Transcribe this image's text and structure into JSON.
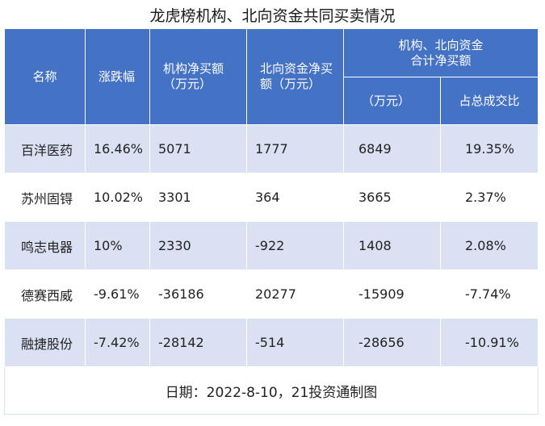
{
  "title": "龙虎榜机构、北向资金共同买卖情况",
  "header": {
    "name": "名称",
    "change": "涨跌幅",
    "inst_net_l1": "机构净买额",
    "inst_net_l2": "（万元）",
    "north_net_l1": "北向资金净买",
    "north_net_l2": "额（万元）",
    "combined_l1": "机构、北向资金",
    "combined_l2": "合计净买额",
    "combined_unit": "（万元）",
    "share": "占总成交比"
  },
  "rows": [
    {
      "name": "百洋医药",
      "change": "16.46%",
      "inst": "5071",
      "north": "1777",
      "total": "6849",
      "share": "19.35%"
    },
    {
      "name": "苏州固锝",
      "change": "10.02%",
      "inst": "3301",
      "north": "364",
      "total": "3665",
      "share": "2.37%"
    },
    {
      "name": "鸣志电器",
      "change": "10%",
      "inst": "2330",
      "north": "-922",
      "total": "1408",
      "share": "2.08%"
    },
    {
      "name": "德赛西威",
      "change": "-9.61%",
      "inst": "-36186",
      "north": "20277",
      "total": "-15909",
      "share": "-7.74%"
    },
    {
      "name": "融捷股份",
      "change": "-7.42%",
      "inst": "-28142",
      "north": "-514",
      "total": "-28656",
      "share": "-10.91%"
    }
  ],
  "footer": "日期：2022-8-10，21投资通制图",
  "colors": {
    "header_bg": "#4472c4",
    "stripe": "#d9e1f2"
  }
}
